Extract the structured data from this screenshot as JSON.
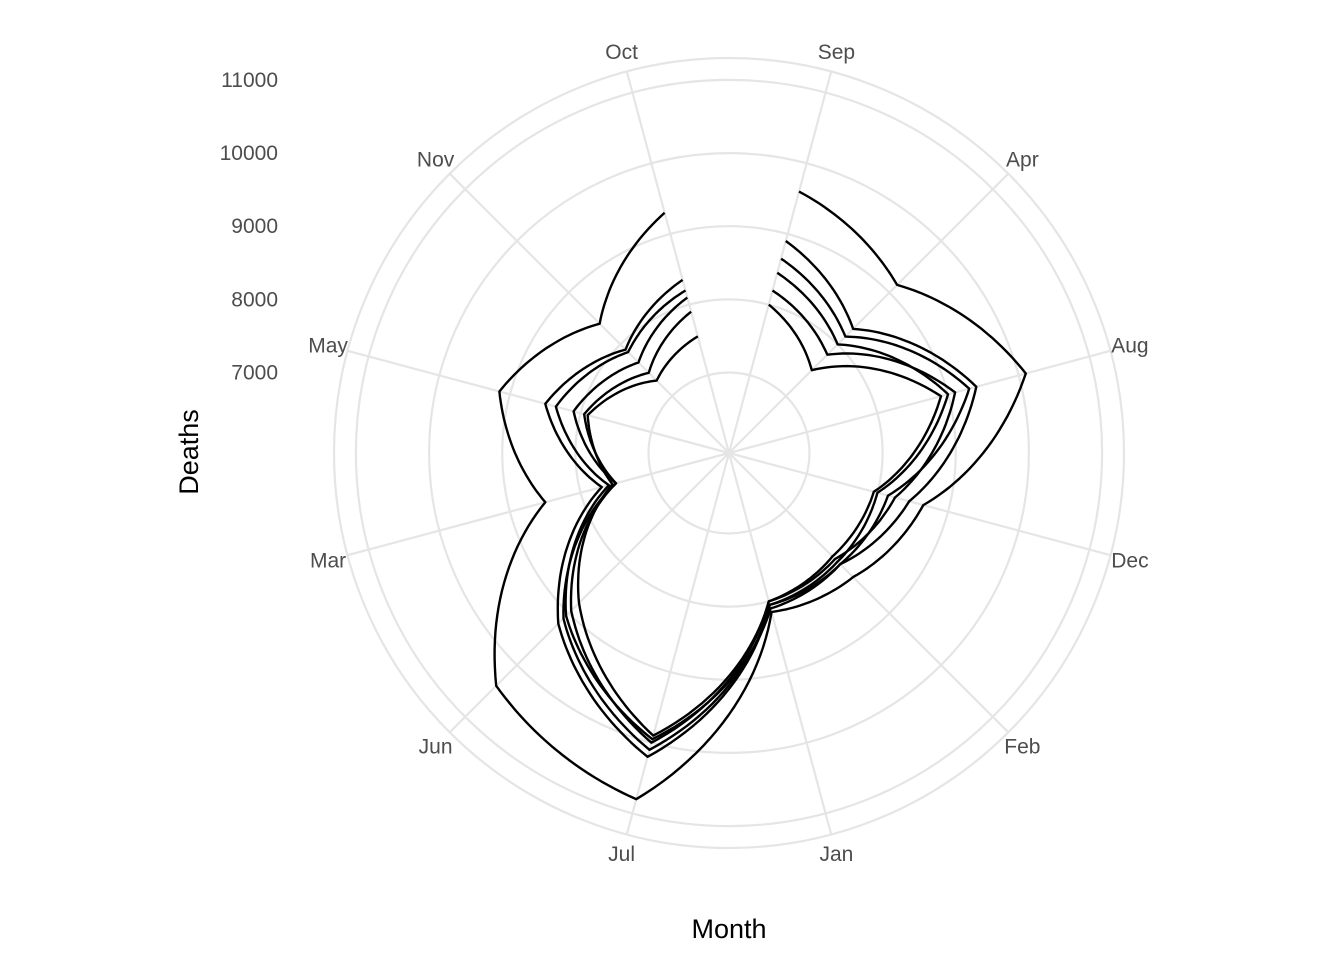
{
  "chart_data": {
    "type": "line",
    "coord": "polar",
    "title": "",
    "xlabel": "Month",
    "ylabel": "Deaths",
    "categories": [
      "Sep",
      "Apr",
      "Aug",
      "Dec",
      "Feb",
      "Jan",
      "Jul",
      "Jun",
      "Mar",
      "May",
      "Nov",
      "Oct"
    ],
    "y_ticks": [
      7000,
      8000,
      9000,
      10000,
      11000
    ],
    "ylim": [
      5900,
      11300
    ],
    "grid": true,
    "legend": "none",
    "series": [
      {
        "values": [
          9600,
          9150,
          10100,
          8650,
          8300,
          8150,
          10800,
          10400,
          8500,
          9150,
          8400,
          9300
        ]
      },
      {
        "values": [
          8900,
          8300,
          9400,
          8450,
          8050,
          8050,
          10200,
          9200,
          7700,
          8500,
          7900,
          8350
        ]
      },
      {
        "values": [
          8650,
          8150,
          9300,
          8150,
          8050,
          8100,
          9950,
          9050,
          7600,
          8350,
          7850,
          8200
        ]
      },
      {
        "values": [
          8450,
          8000,
          9000,
          8000,
          8000,
          8050,
          10100,
          9100,
          7500,
          8100,
          7650,
          8100
        ]
      },
      {
        "values": [
          8200,
          7800,
          9100,
          8250,
          7950,
          8000,
          10000,
          8950,
          7500,
          7950,
          7450,
          7900
        ]
      },
      {
        "values": [
          8000,
          7500,
          8900,
          7950,
          7900,
          8000,
          9900,
          8800,
          7550,
          7900,
          7300,
          7550
        ]
      }
    ]
  }
}
